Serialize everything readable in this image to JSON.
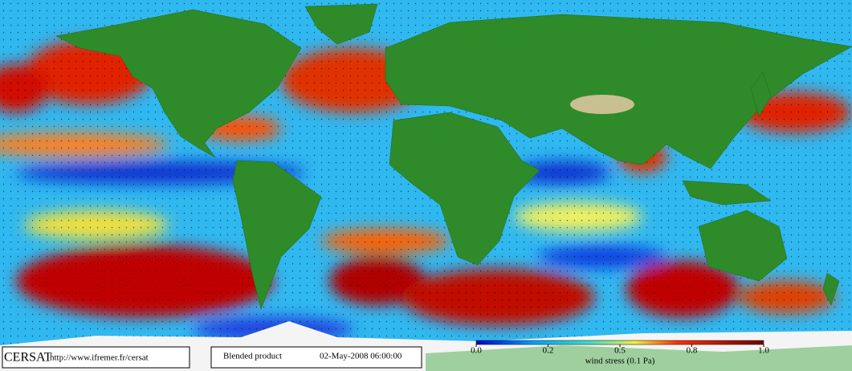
{
  "header": {
    "logo": "CERSAT",
    "url": "http://www.ifremer.fr/cersat",
    "product": "Blended product",
    "timestamp": "02-May-2008 06:00:00"
  },
  "colorbar": {
    "ticks": [
      {
        "value": 0,
        "label": "0.0"
      },
      0.2,
      0.5,
      0.8,
      {
        "value": 1,
        "label": "1.0"
      }
    ],
    "label": "wind stress (0.1 Pa)"
  }
}
